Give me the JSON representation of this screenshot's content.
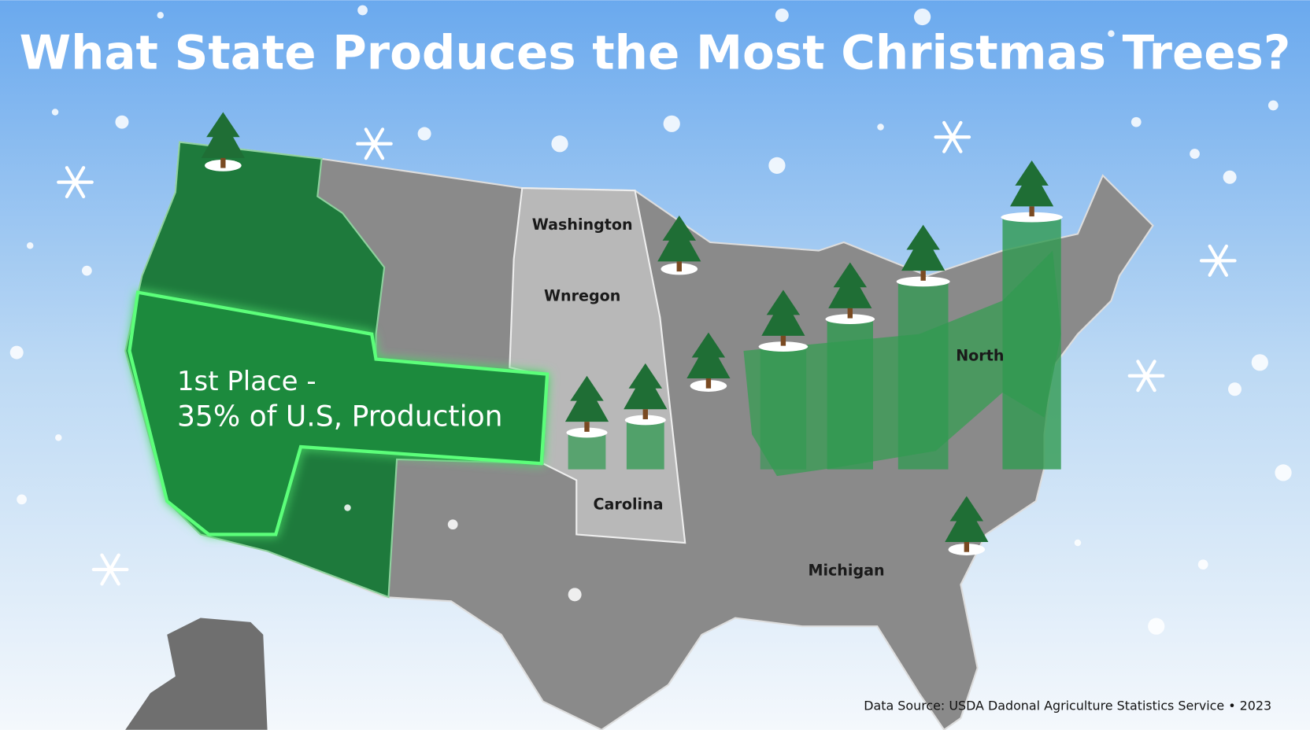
{
  "title": "What State Produces the Most Christmas Trees?",
  "highlight": {
    "line1": "1st Place -",
    "line2": "35% of U.S, Production"
  },
  "state_labels": [
    "Washington",
    "Wnregon",
    "North",
    "Carolina",
    "Michigan"
  ],
  "source": "Data Source: USDA Dadonal Agriculture Statistics Service • 2023"
}
